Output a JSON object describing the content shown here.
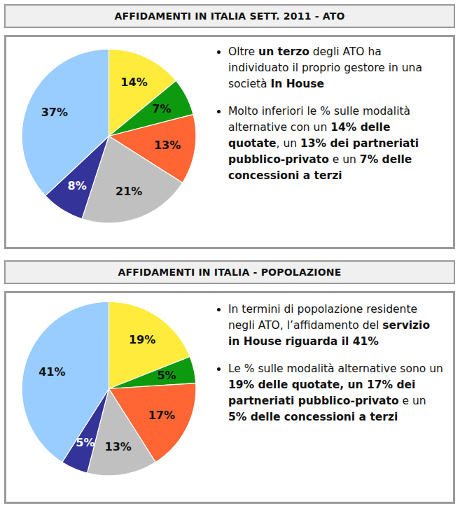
{
  "chart_data": [
    {
      "type": "pie",
      "title": "AFFIDAMENTI IN ITALIA SETT. 2011 - ATO",
      "values": [
        14,
        7,
        13,
        21,
        8,
        37
      ],
      "value_labels": [
        "14%",
        "7%",
        "13%",
        "21%",
        "8%",
        "37%"
      ],
      "colors": [
        "#ffeb3b",
        "#0e9a0e",
        "#ff6633",
        "#c0c0c0",
        "#333399",
        "#99ccff"
      ],
      "data_labels": true,
      "annotations": [
        [
          "Oltre ",
          "un terzo",
          " degli ATO ha individuato il proprio gestore in una società ",
          "In House"
        ],
        [
          "Molto inferiori le % sulle modalità alternative con un ",
          "14% delle quotate",
          ", un ",
          "13% dei partneriati pubblico-privato",
          " e un ",
          "7% delle concessioni a terzi"
        ]
      ]
    },
    {
      "type": "pie",
      "title": "AFFIDAMENTI IN ITALIA - POPOLAZIONE",
      "values": [
        19,
        5,
        17,
        13,
        5,
        41
      ],
      "value_labels": [
        "19%",
        "5%",
        "17%",
        "13%",
        "5%",
        "41%"
      ],
      "colors": [
        "#ffeb3b",
        "#0e9a0e",
        "#ff6633",
        "#c0c0c0",
        "#333399",
        "#99ccff"
      ],
      "data_labels": true,
      "annotations": [
        [
          "In termini di popolazione residente negli ATO, l’affidamento del ",
          "servizio in House riguarda il 41%"
        ],
        [
          "Le % sulle modalità alternative sono un ",
          "19% delle quotate, un 17% dei partneriati pubblico-privato",
          " e un ",
          "5% delle concessioni a terzi"
        ]
      ]
    }
  ]
}
